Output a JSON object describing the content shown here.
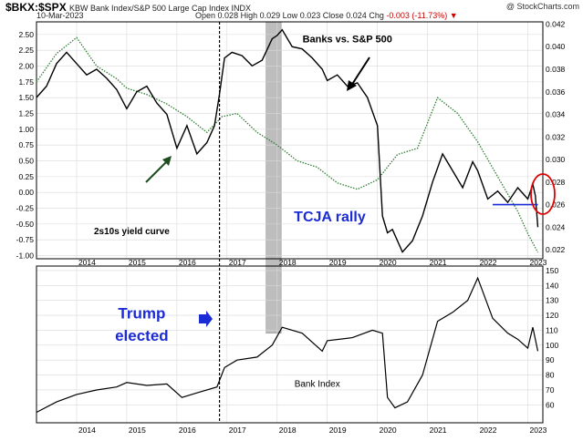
{
  "header": {
    "symbol": "$BKX:$SPX",
    "name": "KBW Bank Index/S&P 500 Large Cap Index INDX",
    "date": "10-Mar-2023",
    "open_label": "Open",
    "open": "0.028",
    "high_label": "High",
    "high": "0.029",
    "low_label": "Low",
    "low": "0.023",
    "close_label": "Close",
    "close": "0.024",
    "chg_label": "Chg",
    "chg": "-0.003 (-11.73%)",
    "watermark": "@ StockCharts.com"
  },
  "chart_data": [
    {
      "type": "line",
      "panel": "top",
      "x_ticks": [
        "2014",
        "2015",
        "2016",
        "2017",
        "2018",
        "2019",
        "2020",
        "2021",
        "2022",
        "2023"
      ],
      "left_axis_ticks": [
        "2.50",
        "2.25",
        "2.00",
        "1.75",
        "1.50",
        "1.25",
        "1.00",
        "0.75",
        "0.50",
        "0.25",
        "0.00",
        "-0.25",
        "-0.50",
        "-0.75",
        "-1.00"
      ],
      "left_ylim": [
        -1.05,
        2.7
      ],
      "right_axis_ticks": [
        "0.042",
        "0.040",
        "0.038",
        "0.036",
        "0.034",
        "0.032",
        "0.030",
        "0.028",
        "0.026",
        "0.024",
        "0.022"
      ],
      "right_ylim": [
        0.0212,
        0.0422
      ],
      "series": [
        {
          "name": "Banks vs. S&P 500",
          "axis": "right",
          "color": "#000000",
          "x": [
            2013.2,
            2013.4,
            2013.6,
            2013.8,
            2014.0,
            2014.2,
            2014.4,
            2014.6,
            2014.8,
            2015.0,
            2015.2,
            2015.4,
            2015.6,
            2015.8,
            2016.0,
            2016.2,
            2016.4,
            2016.6,
            2016.75,
            2016.85,
            2016.95,
            2017.1,
            2017.3,
            2017.5,
            2017.7,
            2017.9,
            2018.0,
            2018.1,
            2018.3,
            2018.5,
            2018.7,
            2018.9,
            2019.0,
            2019.2,
            2019.4,
            2019.6,
            2019.8,
            2020.0,
            2020.1,
            2020.2,
            2020.3,
            2020.5,
            2020.7,
            2020.9,
            2021.1,
            2021.3,
            2021.5,
            2021.7,
            2021.9,
            2022.0,
            2022.2,
            2022.4,
            2022.6,
            2022.8,
            2023.0,
            2023.1,
            2023.15,
            2023.2
          ],
          "y": [
            0.0355,
            0.0365,
            0.0385,
            0.0395,
            0.0385,
            0.0375,
            0.038,
            0.0372,
            0.0362,
            0.0345,
            0.036,
            0.0365,
            0.035,
            0.034,
            0.031,
            0.033,
            0.0305,
            0.0315,
            0.033,
            0.0358,
            0.039,
            0.0395,
            0.0392,
            0.0383,
            0.0388,
            0.0407,
            0.041,
            0.0415,
            0.04,
            0.0398,
            0.039,
            0.038,
            0.037,
            0.0375,
            0.0365,
            0.0368,
            0.0355,
            0.033,
            0.025,
            0.0235,
            0.0238,
            0.0218,
            0.0228,
            0.025,
            0.028,
            0.0305,
            0.029,
            0.0275,
            0.0298,
            0.029,
            0.0265,
            0.0272,
            0.0262,
            0.0275,
            0.0265,
            0.0278,
            0.0268,
            0.024
          ]
        },
        {
          "name": "2s10s yield curve",
          "axis": "left",
          "color": "#2e7d32",
          "x": [
            2013.2,
            2013.6,
            2014.0,
            2014.4,
            2014.8,
            2015.0,
            2015.4,
            2015.8,
            2016.2,
            2016.6,
            2016.9,
            2017.2,
            2017.6,
            2018.0,
            2018.4,
            2018.8,
            2019.2,
            2019.6,
            2020.0,
            2020.4,
            2020.8,
            2021.2,
            2021.6,
            2022.0,
            2022.4,
            2022.8,
            2023.0,
            2023.2
          ],
          "y": [
            1.75,
            2.2,
            2.45,
            2.0,
            1.8,
            1.65,
            1.55,
            1.4,
            1.2,
            0.95,
            1.2,
            1.25,
            0.95,
            0.75,
            0.5,
            0.4,
            0.15,
            0.05,
            0.2,
            0.6,
            0.7,
            1.5,
            1.25,
            0.8,
            0.25,
            -0.3,
            -0.65,
            -0.95
          ]
        }
      ],
      "annotations": [
        {
          "text": "Banks vs. S&P 500",
          "x": 2019.4,
          "y": 0.0404
        },
        {
          "text": "2s10s yield curve",
          "x": 2015.1,
          "y": 0.0234
        },
        {
          "text": "TCJA rally",
          "x": 2019.05,
          "y": 0.0245
        }
      ],
      "highlight_range_x": [
        2017.78,
        2018.08
      ],
      "vertical_line_x": 2016.85,
      "reference_line": {
        "x": [
          2022.3,
          2023.2
        ],
        "y": 0.026,
        "color": "#1b2bd6"
      }
    },
    {
      "type": "line",
      "panel": "bottom",
      "title": "Bank Index",
      "x_ticks": [
        "2014",
        "2015",
        "2016",
        "2017",
        "2018",
        "2019",
        "2020",
        "2021",
        "2022",
        "2023"
      ],
      "y_ticks": [
        "150",
        "140",
        "130",
        "120",
        "110",
        "100",
        "90",
        "80",
        "70",
        "60"
      ],
      "ylim": [
        48,
        153
      ],
      "series": [
        {
          "name": "Bank Index",
          "color": "#000000",
          "x": [
            2013.2,
            2013.6,
            2014.0,
            2014.4,
            2014.8,
            2015.0,
            2015.4,
            2015.8,
            2016.1,
            2016.4,
            2016.8,
            2016.95,
            2017.2,
            2017.6,
            2017.9,
            2018.1,
            2018.5,
            2018.9,
            2019.0,
            2019.5,
            2019.9,
            2020.1,
            2020.2,
            2020.35,
            2020.6,
            2020.9,
            2021.2,
            2021.5,
            2021.8,
            2022.0,
            2022.3,
            2022.6,
            2022.8,
            2023.0,
            2023.1,
            2023.2
          ],
          "y": [
            55,
            62,
            67,
            70,
            72,
            75,
            73,
            74,
            65,
            68,
            72,
            85,
            90,
            92,
            100,
            112,
            108,
            96,
            103,
            105,
            110,
            108,
            65,
            58,
            62,
            80,
            116,
            122,
            130,
            145,
            118,
            108,
            104,
            98,
            112,
            96
          ]
        }
      ],
      "annotations": [
        {
          "text": "Trump",
          "x": 2015.3,
          "y": 118
        },
        {
          "text": "elected",
          "x": 2015.3,
          "y": 103
        },
        {
          "text": "Bank Index",
          "x": 2018.8,
          "y": 72
        }
      ]
    }
  ]
}
